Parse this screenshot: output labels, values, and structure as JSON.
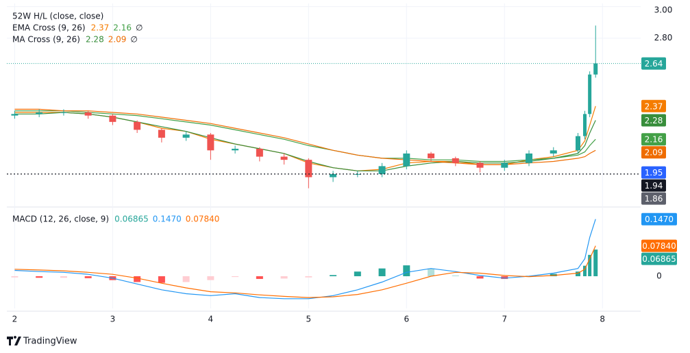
{
  "chart_data": {
    "type": "candlestick",
    "legend": [
      {
        "text": "52W H/L (close, close)"
      },
      {
        "text": "EMA Cross (9, 26)",
        "symbol": "∅"
      },
      {
        "text": "MA Cross (9, 26)",
        "symbol": "∅"
      }
    ],
    "x": [
      2.0,
      2.25,
      2.5,
      2.75,
      3.0,
      3.25,
      3.5,
      3.75,
      4.0,
      4.25,
      4.5,
      4.75,
      5.0,
      5.25,
      5.5,
      5.75,
      6.0,
      6.25,
      6.5,
      6.75,
      7.0,
      7.25,
      7.5,
      7.75,
      7.82,
      7.87,
      7.93
    ],
    "xlim": [
      1.92,
      8.39
    ],
    "xticks": [
      2,
      3,
      4,
      5,
      6,
      7,
      8
    ],
    "ylim": [
      1.74,
      3.02
    ],
    "yticks": [
      {
        "value": 3.0,
        "label": "3.00"
      },
      {
        "value": 2.8,
        "label": "2.80"
      }
    ],
    "up_color": "#26a69a",
    "down_color": "#ef5350",
    "open": [
      2.31,
      2.32,
      2.33,
      2.33,
      2.31,
      2.27,
      2.22,
      2.17,
      2.19,
      2.09,
      2.1,
      2.05,
      2.03,
      1.92,
      1.94,
      1.94,
      1.99,
      2.07,
      2.04,
      2.01,
      1.98,
      2.01,
      2.07,
      2.09,
      2.18,
      2.32,
      2.57
    ],
    "high": [
      2.34,
      2.35,
      2.35,
      2.34,
      2.32,
      2.28,
      2.23,
      2.21,
      2.2,
      2.12,
      2.11,
      2.07,
      2.04,
      1.96,
      1.96,
      2.01,
      2.09,
      2.08,
      2.05,
      2.02,
      2.03,
      2.09,
      2.11,
      2.2,
      2.34,
      2.59,
      2.88
    ],
    "low": [
      2.29,
      2.3,
      2.31,
      2.29,
      2.25,
      2.2,
      2.14,
      2.15,
      2.03,
      2.07,
      2.02,
      2.0,
      1.85,
      1.89,
      1.92,
      1.92,
      1.97,
      2.02,
      1.99,
      1.95,
      1.96,
      1.99,
      2.05,
      2.07,
      2.16,
      2.3,
      2.55
    ],
    "close": [
      2.32,
      2.33,
      2.33,
      2.31,
      2.27,
      2.22,
      2.17,
      2.19,
      2.09,
      2.1,
      2.05,
      2.03,
      1.92,
      1.94,
      1.94,
      1.99,
      2.07,
      2.04,
      2.01,
      1.98,
      2.01,
      2.07,
      2.09,
      2.18,
      2.32,
      2.57,
      2.64
    ],
    "series": [
      {
        "name": "EMA 9",
        "color": "#f57c00",
        "values": [
          2.33,
          2.33,
          2.33,
          2.32,
          2.3,
          2.27,
          2.23,
          2.21,
          2.16,
          2.13,
          2.1,
          2.07,
          2.01,
          1.98,
          1.96,
          1.97,
          2.01,
          2.02,
          2.02,
          2.0,
          2.0,
          2.03,
          2.05,
          2.09,
          2.15,
          2.25,
          2.37
        ]
      },
      {
        "name": "EMA 26",
        "color": "#43a047",
        "values": [
          2.34,
          2.34,
          2.34,
          2.33,
          2.32,
          2.31,
          2.29,
          2.27,
          2.25,
          2.22,
          2.19,
          2.16,
          2.12,
          2.09,
          2.06,
          2.04,
          2.04,
          2.03,
          2.03,
          2.02,
          2.02,
          2.03,
          2.04,
          2.06,
          2.08,
          2.12,
          2.16
        ]
      },
      {
        "name": "MA 9",
        "color": "#388e3c",
        "values": [
          2.32,
          2.32,
          2.33,
          2.32,
          2.3,
          2.27,
          2.24,
          2.21,
          2.17,
          2.13,
          2.1,
          2.07,
          2.02,
          1.98,
          1.96,
          1.96,
          1.99,
          2.01,
          2.02,
          2.01,
          2.01,
          2.02,
          2.04,
          2.07,
          2.12,
          2.2,
          2.28
        ]
      },
      {
        "name": "MA 26",
        "color": "#ef6c00",
        "values": [
          2.35,
          2.35,
          2.34,
          2.34,
          2.33,
          2.32,
          2.3,
          2.28,
          2.26,
          2.23,
          2.2,
          2.17,
          2.13,
          2.09,
          2.06,
          2.04,
          2.03,
          2.02,
          2.01,
          2.0,
          2.0,
          2.01,
          2.02,
          2.04,
          2.05,
          2.07,
          2.09
        ]
      }
    ],
    "price_levels": [
      {
        "value": 1.95,
        "color": "#2962ff"
      },
      {
        "value": 1.94,
        "color": "#131722"
      },
      {
        "value": 1.86,
        "color": "#5d606b"
      }
    ],
    "macd": {
      "title": "MACD (12, 26, close, 9)",
      "ylim": [
        -0.083,
        0.173
      ],
      "yticks": [
        0
      ],
      "histogram": {
        "values": [
          -0.003,
          -0.004,
          -0.004,
          -0.005,
          -0.01,
          -0.015,
          -0.017,
          -0.015,
          -0.01,
          -0.002,
          -0.007,
          -0.006,
          -0.003,
          0.003,
          0.012,
          0.02,
          0.028,
          0.02,
          0.002,
          -0.006,
          -0.007,
          0.001,
          0.006,
          0.012,
          0.027,
          0.055,
          0.06865
        ],
        "colors": {
          "up_rising": "#26a69a",
          "up_falling": "#b2dfdb",
          "down_falling": "#ff5252",
          "down_rising": "#ffcdd2"
        }
      },
      "series": [
        {
          "name": "MACD",
          "color": "#2196f3",
          "values": [
            0.015,
            0.012,
            0.01,
            0.005,
            -0.005,
            -0.02,
            -0.035,
            -0.045,
            -0.05,
            -0.045,
            -0.055,
            -0.058,
            -0.058,
            -0.05,
            -0.035,
            -0.015,
            0.01,
            0.02,
            0.012,
            0.002,
            -0.005,
            0.0,
            0.008,
            0.02,
            0.045,
            0.1,
            0.147
          ],
          "value_labels": [
            null,
            null,
            null,
            null,
            null,
            null,
            null,
            null,
            null,
            null,
            null,
            null,
            null,
            null,
            null,
            null,
            null,
            null,
            null,
            null,
            null,
            null,
            null,
            null,
            null,
            null,
            "0.1470"
          ]
        },
        {
          "name": "Signal",
          "color": "#ff6d00",
          "values": [
            0.018,
            0.016,
            0.014,
            0.01,
            0.005,
            -0.005,
            -0.018,
            -0.03,
            -0.04,
            -0.043,
            -0.048,
            -0.052,
            -0.055,
            -0.053,
            -0.047,
            -0.035,
            -0.018,
            0.0,
            0.01,
            0.008,
            0.002,
            -0.001,
            0.002,
            0.008,
            0.018,
            0.045,
            0.0784
          ],
          "value_labels": [
            null,
            null,
            null,
            null,
            null,
            null,
            null,
            null,
            null,
            null,
            null,
            null,
            null,
            null,
            null,
            null,
            null,
            null,
            null,
            null,
            null,
            null,
            null,
            null,
            null,
            null,
            "0.07840"
          ]
        }
      ]
    }
  },
  "footer": {
    "brand": "TradingView"
  }
}
